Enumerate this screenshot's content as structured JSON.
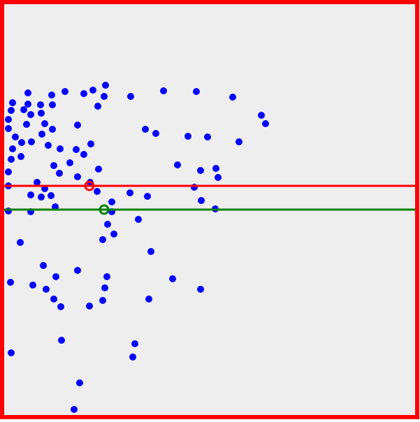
{
  "board": {
    "background_color": "#eeeeee",
    "border_color": "#ff0000"
  },
  "dot_color": "#0000ff",
  "red_line": {
    "color": "#ff0000"
  },
  "green_line": {
    "color": "#008000"
  },
  "red_marker": {
    "color": "#ff0000"
  },
  "green_marker": {
    "color": "#008000"
  }
}
